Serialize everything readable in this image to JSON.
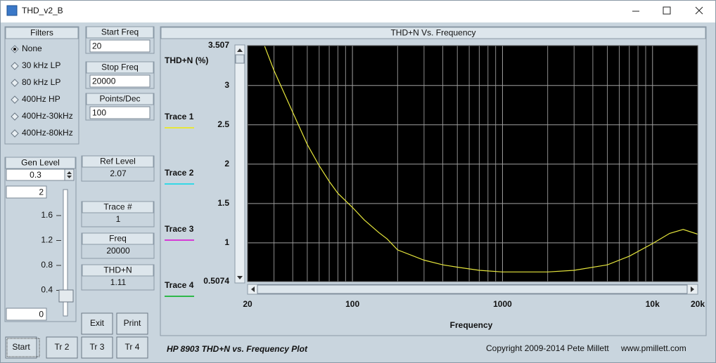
{
  "window": {
    "title": "THD_v2_B"
  },
  "filters": {
    "title": "Filters",
    "options": [
      "None",
      "30 kHz LP",
      "80 kHz LP",
      "400Hz HP",
      "400Hz-30kHz",
      "400Hz-80kHz"
    ],
    "selected": 0
  },
  "start_freq": {
    "label": "Start Freq",
    "value": "20"
  },
  "stop_freq": {
    "label": "Stop Freq",
    "value": "20000"
  },
  "points_per_decade": {
    "label": "Points/Dec",
    "value": "100"
  },
  "gen_level": {
    "label": "Gen Level",
    "value": "0.3",
    "slider_max": "2",
    "slider_min": "0",
    "slider_ticks": [
      "1.6",
      "1.2",
      "0.8",
      "0.4"
    ]
  },
  "readouts": [
    {
      "label": "Ref Level",
      "value": "2.07"
    },
    {
      "label": "Trace #",
      "value": "1"
    },
    {
      "label": "Freq",
      "value": "20000"
    },
    {
      "label": "THD+N",
      "value": "1.11"
    }
  ],
  "buttons": [
    "Exit",
    "Print",
    "Start",
    "Tr 2",
    "Tr 3",
    "Tr 4"
  ],
  "footer": {
    "title": "HP 8903 THD+N vs. Frequency Plot",
    "copyright": "Copyright 2009-2014 Pete Millett",
    "website": "www.pmillett.com"
  },
  "chart_data": {
    "type": "line",
    "title": "THD+N Vs. Frequency",
    "y_label": "THD+N (%)",
    "x_label": "Frequency",
    "x": [
      26,
      30,
      40,
      50,
      60,
      70,
      80,
      100,
      120,
      150,
      170,
      200,
      300,
      400,
      500,
      700,
      1000,
      2000,
      3000,
      5000,
      7000,
      10000,
      13000,
      16000,
      20000
    ],
    "series": [
      {
        "name": "Trace 1",
        "color": "#e6e63c",
        "values": [
          3.5,
          3.19,
          2.66,
          2.25,
          1.98,
          1.78,
          1.63,
          1.45,
          1.29,
          1.13,
          1.05,
          0.91,
          0.78,
          0.72,
          0.69,
          0.65,
          0.63,
          0.63,
          0.65,
          0.72,
          0.83,
          0.99,
          1.12,
          1.17,
          1.11
        ]
      },
      {
        "name": "Trace 2",
        "color": "#35d8e6",
        "values": [
          null,
          null,
          null,
          null,
          null,
          null,
          null,
          null,
          null,
          null,
          null,
          null,
          null,
          null,
          null,
          null,
          null,
          null,
          null,
          null,
          null,
          null,
          null,
          null,
          null
        ]
      },
      {
        "name": "Trace 3",
        "color": "#d63cd6",
        "values": [
          null,
          null,
          null,
          null,
          null,
          null,
          null,
          null,
          null,
          null,
          null,
          null,
          null,
          null,
          null,
          null,
          null,
          null,
          null,
          null,
          null,
          null,
          null,
          null,
          null
        ]
      },
      {
        "name": "Trace 4",
        "color": "#2eb84a",
        "values": [
          null,
          null,
          null,
          null,
          null,
          null,
          null,
          null,
          null,
          null,
          null,
          null,
          null,
          null,
          null,
          null,
          null,
          null,
          null,
          null,
          null,
          null,
          null,
          null,
          null
        ]
      }
    ],
    "log_x": true,
    "grid": true,
    "background": "#000000",
    "xlim": [
      20,
      20000
    ],
    "xticks": [
      20,
      100,
      1000,
      {
        "value": 10000,
        "label": "10k"
      },
      {
        "value": 20000,
        "label": "20k"
      }
    ],
    "ylim": [
      0.5074,
      3.507
    ],
    "yticks": [
      0.5074,
      1,
      1.5,
      2,
      2.5,
      3,
      3.507
    ]
  }
}
